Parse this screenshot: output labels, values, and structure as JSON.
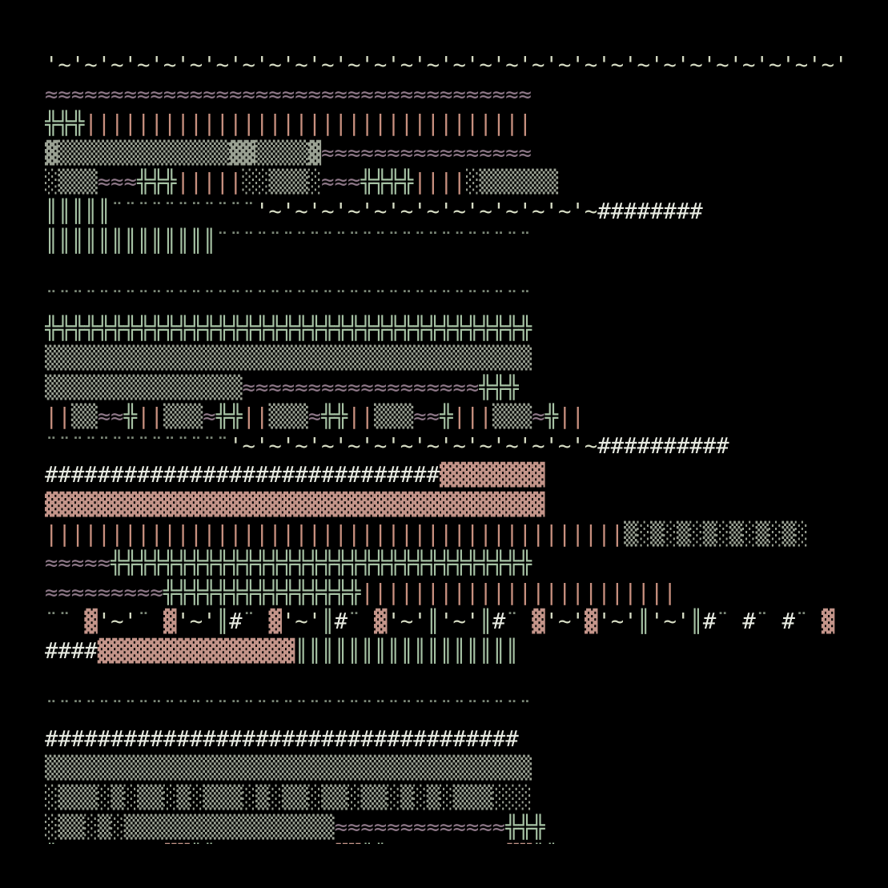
{
  "palette": {
    "background": "#000000",
    "tilde_line": "#d6dcc4",
    "hash": "#e8ebe2",
    "wave": "#8e7888",
    "cross": "#a6c2a4",
    "pipe": "#c8907f",
    "block": "#c4958a",
    "shade": "#9ba294",
    "dbl_bar": "#a6c2a4",
    "dots": "#7c8878"
  },
  "rows": [
    [
      [
        "tilde_line",
        "'~'~'~'~'~'~'~'~'~'~'~'~'~'~'~'~'~'~'~'~'~'~'~'~'~'~'~'~'~'~'~'~'~'~'~'~"
      ],
      [
        "hash",
        "##"
      ]
    ],
    [
      [
        "wave",
        "≈≈≈≈≈≈≈≈≈≈≈≈≈≈≈≈≈≈≈≈≈≈≈≈≈≈≈≈≈≈≈≈≈≈≈≈≈"
      ]
    ],
    [
      [
        "cross",
        "╬╬╬"
      ],
      [
        "pipe",
        "||||||||||||||||||||||||||||||||||"
      ]
    ],
    [
      [
        "shade",
        "▓▒▒▒▒▒▒▒▒▒▒▒▒▒▓▓▒▒▒▒▓"
      ],
      [
        "wave",
        "≈≈≈≈≈≈≈≈≈≈≈≈≈≈≈≈"
      ]
    ],
    [
      [
        "shade",
        "░▒▒▒"
      ],
      [
        "wave",
        "≈≈≈"
      ],
      [
        "cross",
        "╬╬╬"
      ],
      [
        "pipe",
        "|||||"
      ],
      [
        "shade",
        "░░▒▒▒░"
      ],
      [
        "wave",
        "≈≈≈"
      ],
      [
        "cross",
        "╬╬╬╬"
      ],
      [
        "pipe",
        "||||"
      ],
      [
        "shade",
        "░▒▒▒▒▒▒"
      ]
    ],
    [
      [
        "dbl_bar",
        "║║║║║"
      ],
      [
        "dots",
        "¨¨¨¨¨¨¨¨¨¨¨"
      ],
      [
        "tilde_line",
        "'~'~'~'~'~'~'~'~'~'~'~'~'~"
      ],
      [
        "hash",
        "########"
      ]
    ],
    [
      [
        "dbl_bar",
        "║║║║║║║║║║║║║"
      ],
      [
        "dots",
        "¨¨¨¨¨¨¨¨¨¨¨¨¨¨¨¨¨¨¨¨¨¨¨¨"
      ]
    ],
    [
      [
        "dots",
        " "
      ]
    ],
    [
      [
        "dots",
        "¨¨¨¨¨¨¨¨¨¨¨¨¨¨¨¨¨¨¨¨¨¨¨¨¨¨¨¨¨¨¨¨¨¨¨¨¨"
      ]
    ],
    [
      [
        "cross",
        "╬╬╬╬╬╬╬╬╬╬╬╬╬╬╬╬╬╬╬╬╬╬╬╬╬╬╬╬╬╬╬╬╬╬╬╬╬"
      ]
    ],
    [
      [
        "shade",
        "▒▒▒▒▒▒▒▒▒▒▒▒▒▒▒▒▒▒▒▒▒▒▒▒▒▒▒▒▒▒▒▒▒▒▒▒▒"
      ]
    ],
    [
      [
        "shade",
        "▒▒▒▒▒▒▒▒▒▒▒▒▒▒▒"
      ],
      [
        "wave",
        "≈≈≈≈≈≈≈≈≈≈≈≈≈≈≈≈≈≈"
      ],
      [
        "cross",
        "╬╬╬"
      ]
    ],
    [
      [
        "pipe",
        "||"
      ],
      [
        "shade",
        "▒▒"
      ],
      [
        "wave",
        "≈≈"
      ],
      [
        "cross",
        "╬"
      ],
      [
        "pipe",
        "||"
      ],
      [
        "shade",
        "▒▒▒"
      ],
      [
        "wave",
        "≈"
      ],
      [
        "cross",
        "╬╬"
      ],
      [
        "pipe",
        "||"
      ],
      [
        "shade",
        "▒▒▒"
      ],
      [
        "wave",
        "≈"
      ],
      [
        "cross",
        "╬╬"
      ],
      [
        "pipe",
        "||"
      ],
      [
        "shade",
        "▒▒▒"
      ],
      [
        "wave",
        "≈≈"
      ],
      [
        "cross",
        "╬"
      ],
      [
        "pipe",
        "|||"
      ],
      [
        "shade",
        "▒▒▒"
      ],
      [
        "wave",
        "≈"
      ],
      [
        "cross",
        "╬"
      ],
      [
        "pipe",
        "||"
      ]
    ],
    [
      [
        "dots",
        "¨¨¨¨¨¨¨¨¨¨¨¨¨¨"
      ],
      [
        "tilde_line",
        "'~'~'~'~'~'~'~'~'~'~'~'~'~'~"
      ],
      [
        "hash",
        "##########"
      ]
    ],
    [
      [
        "hash",
        "##############################"
      ],
      [
        "block",
        "▓▓▓▓▓▓▓▓"
      ]
    ],
    [
      [
        "block",
        "▓▓▓▓▓▓▓▓▓▓▓▓▓▓▓▓▓▓▓▓▓▓▓▓▓▓▓▓▓▓▓▓▓▓▓▓▓▓"
      ]
    ],
    [
      [
        "pipe",
        "||||||||||||||||||||||||||||||||||||||||||||"
      ],
      [
        "shade",
        "▒░▒░▒░▒░▒░▒░▒░"
      ]
    ],
    [
      [
        "wave",
        "≈≈≈≈≈"
      ],
      [
        "cross",
        "╬╬╬╬╬╬╬╬╬╬╬╬╬╬╬╬╬╬╬╬╬╬╬╬╬╬╬╬╬╬╬╬"
      ]
    ],
    [
      [
        "wave",
        "≈≈≈≈≈≈≈≈≈"
      ],
      [
        "cross",
        "╬╬╬╬╬╬╬╬╬╬╬╬╬╬╬"
      ],
      [
        "pipe",
        "||||||||||||||||||||||||"
      ]
    ],
    [
      [
        "dots",
        "¨¨ "
      ],
      [
        "block",
        "▓"
      ],
      [
        "tilde_line",
        "'~'"
      ],
      [
        "dots",
        "¨ "
      ],
      [
        "block",
        "▓"
      ],
      [
        "tilde_line",
        "'~'"
      ],
      [
        "dbl_bar",
        "║"
      ],
      [
        "hash",
        "#"
      ],
      [
        "dots",
        "¨ "
      ],
      [
        "block",
        "▓"
      ],
      [
        "tilde_line",
        "'~'"
      ],
      [
        "dbl_bar",
        "║"
      ],
      [
        "hash",
        "#"
      ],
      [
        "dots",
        "¨ "
      ],
      [
        "block",
        "▓"
      ],
      [
        "tilde_line",
        "'~'"
      ],
      [
        "dbl_bar",
        "║"
      ],
      [
        "tilde_line",
        "'~'"
      ],
      [
        "dbl_bar",
        "║"
      ],
      [
        "hash",
        "#"
      ],
      [
        "dots",
        "¨ "
      ],
      [
        "block",
        "▓"
      ],
      [
        "tilde_line",
        "'~'"
      ],
      [
        "block",
        "▓"
      ],
      [
        "tilde_line",
        "'~'"
      ],
      [
        "dbl_bar",
        "║"
      ],
      [
        "tilde_line",
        "'~'"
      ],
      [
        "dbl_bar",
        "║"
      ],
      [
        "hash",
        "#"
      ],
      [
        "dots",
        "¨ "
      ],
      [
        "hash",
        "#"
      ],
      [
        "dots",
        "¨ "
      ],
      [
        "hash",
        "#"
      ],
      [
        "dots",
        "¨ "
      ],
      [
        "block",
        "▓"
      ]
    ],
    [
      [
        "hash",
        "####"
      ],
      [
        "block",
        "▓▓▓▓▓▓▓▓▓▓▓▓▓▓▓"
      ],
      [
        "dbl_bar",
        "║║║║║║║║║║║║║║║║║"
      ]
    ],
    [
      [
        "dots",
        " "
      ]
    ],
    [
      [
        "dots",
        "¨¨¨¨¨¨¨¨¨¨¨¨¨¨¨¨¨¨¨¨¨¨¨¨¨¨¨¨¨¨¨¨¨¨¨¨¨"
      ]
    ],
    [
      [
        "hash",
        "####################################"
      ]
    ],
    [
      [
        "shade",
        "▒▒▒▒▒▒▒▒▒▒▒▒▒▒▒▒▒▒▒▒▒▒▒▒▒▒▒▒▒▒▒▒▒▒▒▒▒"
      ]
    ],
    [
      [
        "shade",
        "░▒▒▒░▒░▒▒░▒░▒▒▒░▒░▒▒░▒▒░▒▒░▒░▒░▒▒▒░░░"
      ]
    ],
    [
      [
        "shade",
        "░▒▒░▒░▒▒▒▒▒▒▒▒▒▒▒▒▒▒▒▒"
      ],
      [
        "wave",
        "≈≈≈≈≈≈≈≈≈≈≈≈≈"
      ],
      [
        "cross",
        "╬╬╬"
      ]
    ],
    [
      [
        "dbl_bar",
        "║"
      ],
      [
        "dots",
        "¨¨"
      ],
      [
        "tilde_line",
        "'~'~"
      ],
      [
        "hash",
        "##"
      ],
      [
        "block",
        "▓▓"
      ],
      [
        "dbl_bar",
        "║║"
      ],
      [
        "dots",
        "¨¨"
      ],
      [
        "tilde_line",
        "'~'~"
      ],
      [
        "hash",
        "###"
      ],
      [
        "block",
        "▓▓"
      ],
      [
        "dbl_bar",
        "║║"
      ],
      [
        "dots",
        "¨¨"
      ],
      [
        "tilde_line",
        "'~'~"
      ],
      [
        "hash",
        "###"
      ],
      [
        "block",
        "▓▓"
      ],
      [
        "dbl_bar",
        "║║"
      ],
      [
        "dots",
        "¨¨¨¨"
      ],
      [
        "tilde_line",
        "'"
      ]
    ],
    [
      [
        "tilde_line",
        "'"
      ],
      [
        "hash",
        "###################"
      ],
      [
        "block",
        "▓▓▓▓▓▓▓▓▓▓▓▓▓▓▓▓▓▓▓▓"
      ]
    ]
  ]
}
